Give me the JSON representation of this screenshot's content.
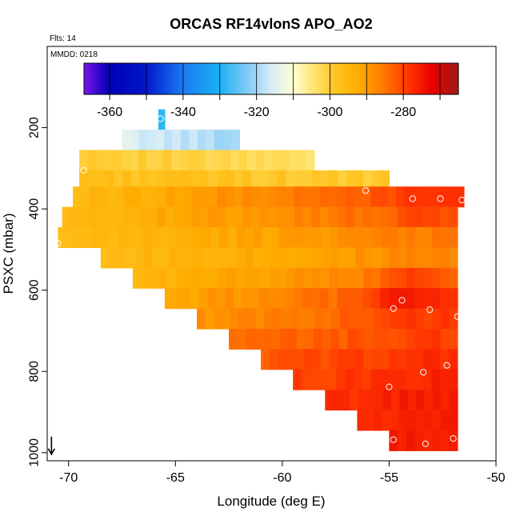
{
  "chart_data": {
    "type": "heatmap",
    "title": "ORCAS RF14vlonS APO_AO2",
    "annotations": {
      "flts": "Flts: 14",
      "mmdd": "MMDD: 0218"
    },
    "xlabel": "Longitude (deg E)",
    "ylabel": "PSXC (mbar)",
    "xlim": [
      -71,
      -50
    ],
    "ylim": [
      1020,
      0
    ],
    "x_ticks": [
      -70,
      -65,
      -60,
      -55,
      -50
    ],
    "x_tick_labels": [
      "-70",
      "-65",
      "-60",
      "-55",
      "-50"
    ],
    "y_ticks": [
      200,
      400,
      600,
      800,
      1000
    ],
    "y_tick_labels": [
      "200",
      "400",
      "600",
      "800",
      "1000"
    ],
    "colorbar": {
      "range": [
        -367,
        -265
      ],
      "ticks": [
        -360,
        -340,
        -320,
        -300,
        -280
      ],
      "tick_labels": [
        "-360",
        "-340",
        "-320",
        "-300",
        "-280"
      ],
      "color_stops": [
        [
          -367,
          "#7a14ee"
        ],
        [
          -360,
          "#0000b4"
        ],
        [
          -350,
          "#0018cc"
        ],
        [
          -340,
          "#1a7cf2"
        ],
        [
          -330,
          "#19b2f4"
        ],
        [
          -322,
          "#88cdf5"
        ],
        [
          -316,
          "#d6ecf8"
        ],
        [
          -310,
          "#ffffd4"
        ],
        [
          -304,
          "#ffe26a"
        ],
        [
          -298,
          "#ffc21c"
        ],
        [
          -292,
          "#ffab00"
        ],
        [
          -285,
          "#ff7600"
        ],
        [
          -278,
          "#ff3000"
        ],
        [
          -272,
          "#e80000"
        ],
        [
          -265,
          "#a01818"
        ]
      ]
    },
    "rows": [
      {
        "p": 180,
        "lon_min": -65.8,
        "lon_max": -65.5,
        "v_start": -327,
        "v_end": -327
      },
      {
        "p": 230,
        "lon_min": -67.5,
        "lon_max": -62.0,
        "v_start": -315,
        "v_end": -320
      },
      {
        "p": 280,
        "lon_min": -69.5,
        "lon_max": -58.5,
        "v_start": -299,
        "v_end": -304
      },
      {
        "p": 330,
        "lon_min": -69.5,
        "lon_max": -55.0,
        "v_start": -297,
        "v_end": -300
      },
      {
        "p": 370,
        "lon_min": -69.8,
        "lon_max": -51.5,
        "v_start": -296,
        "v_end": -278
      },
      {
        "p": 420,
        "lon_min": -70.3,
        "lon_max": -51.8,
        "v_start": -296,
        "v_end": -281
      },
      {
        "p": 470,
        "lon_min": -70.5,
        "lon_max": -51.8,
        "v_start": -297,
        "v_end": -285
      },
      {
        "p": 520,
        "lon_min": -68.5,
        "lon_max": -51.8,
        "v_start": -296,
        "v_end": -287
      },
      {
        "p": 570,
        "lon_min": -67.0,
        "lon_max": -51.8,
        "v_start": -295,
        "v_end": -283
      },
      {
        "p": 620,
        "lon_min": -65.5,
        "lon_max": -51.8,
        "v_start": -292,
        "v_end": -278
      },
      {
        "p": 670,
        "lon_min": -64.0,
        "lon_max": -51.8,
        "v_start": -289,
        "v_end": -279
      },
      {
        "p": 720,
        "lon_min": -62.5,
        "lon_max": -51.8,
        "v_start": -285,
        "v_end": -279
      },
      {
        "p": 770,
        "lon_min": -61.0,
        "lon_max": -51.8,
        "v_start": -282,
        "v_end": -277
      },
      {
        "p": 820,
        "lon_min": -59.5,
        "lon_max": -51.8,
        "v_start": -280,
        "v_end": -276
      },
      {
        "p": 870,
        "lon_min": -58.0,
        "lon_max": -51.8,
        "v_start": -278,
        "v_end": -275
      },
      {
        "p": 920,
        "lon_min": -56.5,
        "lon_max": -51.8,
        "v_start": -277,
        "v_end": -276
      },
      {
        "p": 970,
        "lon_min": -55.0,
        "lon_max": -51.8,
        "v_start": -276,
        "v_end": -276
      }
    ],
    "hotspots": [
      {
        "lon": -54.5,
        "p": 630,
        "v": -272
      },
      {
        "lon": -54.0,
        "p": 600,
        "v": -275
      },
      {
        "lon": -53.5,
        "p": 380,
        "v": -277
      }
    ],
    "samples": [
      {
        "lon": -65.7,
        "p": 178
      },
      {
        "lon": -69.3,
        "p": 305
      },
      {
        "lon": -70.5,
        "p": 485
      },
      {
        "lon": -56.1,
        "p": 355
      },
      {
        "lon": -53.9,
        "p": 375
      },
      {
        "lon": -52.6,
        "p": 375
      },
      {
        "lon": -51.6,
        "p": 378
      },
      {
        "lon": -54.4,
        "p": 625
      },
      {
        "lon": -54.8,
        "p": 645
      },
      {
        "lon": -53.1,
        "p": 648
      },
      {
        "lon": -51.8,
        "p": 665
      },
      {
        "lon": -53.4,
        "p": 802
      },
      {
        "lon": -52.3,
        "p": 785
      },
      {
        "lon": -55.0,
        "p": 838
      },
      {
        "lon": -54.8,
        "p": 968
      },
      {
        "lon": -53.3,
        "p": 978
      },
      {
        "lon": -52.0,
        "p": 965
      }
    ],
    "marker": {
      "lon": -70.8,
      "p": 1000,
      "symbol": "arrow-down"
    }
  }
}
